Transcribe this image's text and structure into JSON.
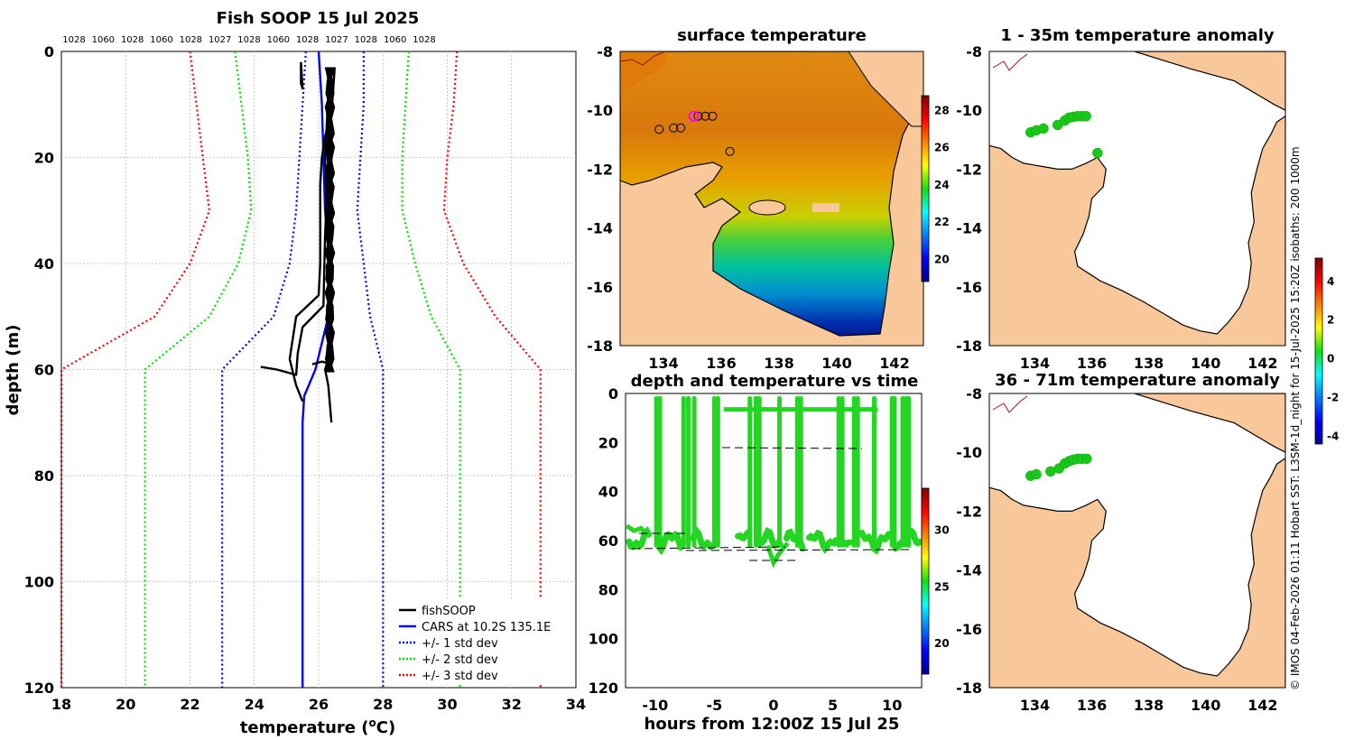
{
  "chart_data": [
    {
      "id": "profile",
      "type": "line",
      "title": "Fish SOOP 15 Jul 2025",
      "xlabel_main": "temperature (",
      "xlabel_sup": "o",
      "xlabel_end": "C)",
      "ylabel": "depth (m)",
      "xlim": [
        18,
        34
      ],
      "ylim": [
        0,
        120
      ],
      "xticks": [
        18,
        20,
        22,
        24,
        26,
        28,
        30,
        32,
        34
      ],
      "yticks": [
        0,
        20,
        40,
        60,
        80,
        100,
        120
      ],
      "top_labels": [
        "1028",
        "1060",
        "1028",
        "1060",
        "1028",
        "1027",
        "1028",
        "1060",
        "1028",
        "1027",
        "1028",
        "1060",
        "1028"
      ],
      "legend_position": "bottom-right",
      "legend": [
        {
          "label": "fishSOOP",
          "color": "#000000",
          "style": "solid"
        },
        {
          "label": "CARS at 10.2S 135.1E",
          "color": "#0000ff",
          "style": "solid"
        },
        {
          "label": "+/- 1 std dev",
          "color": "#0000ff",
          "style": "dotted"
        },
        {
          "label": "+/- 2 std dev",
          "color": "#00e000",
          "style": "dotted"
        },
        {
          "label": "+/- 3 std dev",
          "color": "#ff0000",
          "style": "dotted"
        }
      ],
      "series": [
        {
          "name": "CARS",
          "color": "#0000ff",
          "dash": false,
          "points": [
            [
              26.0,
              0
            ],
            [
              26.1,
              10
            ],
            [
              26.2,
              30
            ],
            [
              26.35,
              40
            ],
            [
              26.3,
              50
            ],
            [
              25.9,
              60
            ],
            [
              25.55,
              65
            ],
            [
              25.5,
              70
            ],
            [
              25.5,
              120
            ]
          ]
        },
        {
          "name": "-1 std",
          "color": "#0000ff",
          "dash": true,
          "points": [
            [
              25.6,
              0
            ],
            [
              25.5,
              10
            ],
            [
              25.4,
              20
            ],
            [
              25.3,
              30
            ],
            [
              25.1,
              40
            ],
            [
              24.6,
              50
            ],
            [
              23.0,
              60
            ],
            [
              23.0,
              120
            ]
          ]
        },
        {
          "name": "+1 std",
          "color": "#0000ff",
          "dash": true,
          "points": [
            [
              27.4,
              0
            ],
            [
              27.4,
              10
            ],
            [
              27.3,
              20
            ],
            [
              27.2,
              30
            ],
            [
              27.4,
              40
            ],
            [
              27.6,
              50
            ],
            [
              28.0,
              60
            ],
            [
              28.0,
              120
            ]
          ]
        },
        {
          "name": "-2 std",
          "color": "#00e000",
          "dash": true,
          "points": [
            [
              23.4,
              0
            ],
            [
              23.6,
              10
            ],
            [
              23.8,
              20
            ],
            [
              23.9,
              30
            ],
            [
              23.5,
              40
            ],
            [
              22.6,
              50
            ],
            [
              20.6,
              60
            ],
            [
              20.6,
              120
            ]
          ]
        },
        {
          "name": "+2 std",
          "color": "#00e000",
          "dash": true,
          "points": [
            [
              28.8,
              0
            ],
            [
              28.7,
              10
            ],
            [
              28.6,
              20
            ],
            [
              28.6,
              30
            ],
            [
              29.0,
              40
            ],
            [
              29.5,
              50
            ],
            [
              30.4,
              60
            ],
            [
              30.4,
              120
            ]
          ]
        },
        {
          "name": "-3 std",
          "color": "#ff0000",
          "dash": true,
          "points": [
            [
              22.0,
              0
            ],
            [
              22.2,
              10
            ],
            [
              22.4,
              20
            ],
            [
              22.6,
              30
            ],
            [
              22.0,
              40
            ],
            [
              20.9,
              50
            ],
            [
              18.0,
              60
            ],
            [
              18.0,
              120
            ]
          ]
        },
        {
          "name": "+3 std",
          "color": "#ff0000",
          "dash": true,
          "points": [
            [
              30.3,
              0
            ],
            [
              30.2,
              10
            ],
            [
              30.0,
              20
            ],
            [
              29.9,
              30
            ],
            [
              30.5,
              40
            ],
            [
              31.5,
              50
            ],
            [
              32.9,
              60
            ],
            [
              32.9,
              120
            ]
          ]
        },
        {
          "name": "fishSOOP a",
          "color": "#000000",
          "dash": false,
          "points": [
            [
              26.3,
              3
            ],
            [
              26.35,
              10
            ],
            [
              26.4,
              20
            ],
            [
              26.4,
              30
            ],
            [
              26.4,
              40
            ],
            [
              26.35,
              50
            ],
            [
              26.3,
              58
            ],
            [
              26.2,
              60
            ],
            [
              26.3,
              63
            ],
            [
              26.4,
              70
            ]
          ]
        },
        {
          "name": "fishSOOP b",
          "color": "#000000",
          "dash": false,
          "points": [
            [
              26.5,
              3
            ],
            [
              26.4,
              12
            ],
            [
              26.2,
              16
            ],
            [
              26.1,
              20
            ],
            [
              26.05,
              25
            ],
            [
              26.05,
              40
            ],
            [
              26.0,
              46
            ],
            [
              25.3,
              50
            ],
            [
              25.1,
              58
            ],
            [
              25.3,
              63
            ],
            [
              25.5,
              66
            ]
          ]
        },
        {
          "name": "fishSOOP c",
          "color": "#000000",
          "dash": false,
          "points": [
            [
              26.4,
              5
            ],
            [
              26.3,
              20
            ],
            [
              26.2,
              35
            ],
            [
              26.15,
              48
            ],
            [
              25.5,
              52
            ],
            [
              25.35,
              57
            ],
            [
              25.3,
              61
            ],
            [
              24.7,
              60
            ],
            [
              24.2,
              59.5
            ]
          ]
        },
        {
          "name": "fishSOOP d",
          "color": "#000000",
          "dash": false,
          "points": [
            [
              26.3,
              8
            ],
            [
              26.2,
              20
            ],
            [
              26.3,
              40
            ],
            [
              26.4,
              59
            ],
            [
              26.1,
              58.5
            ],
            [
              25.8,
              59
            ]
          ]
        },
        {
          "name": "fishSOOP e",
          "color": "#000000",
          "dash": false,
          "points": [
            [
              25.45,
              2
            ],
            [
              25.45,
              6
            ],
            [
              25.5,
              7
            ],
            [
              25.45,
              2
            ]
          ]
        }
      ]
    },
    {
      "id": "sst",
      "type": "heatmap",
      "title": "surface temperature",
      "xticks": [
        134,
        136,
        138,
        140,
        142
      ],
      "yticks": [
        -8,
        -10,
        -12,
        -14,
        -16,
        -18
      ],
      "colorbar_ticks": [
        20,
        22,
        24,
        26,
        28
      ]
    },
    {
      "id": "timeseries",
      "type": "scatter",
      "title": "depth and temperature vs time",
      "xlabel": "hours from 12:00Z 15 Jul 25",
      "xticks": [
        -10,
        -5,
        0,
        5,
        10
      ],
      "yticks": [
        0,
        20,
        40,
        60,
        80,
        100,
        120
      ],
      "colorbar_ticks": [
        20,
        25,
        30
      ],
      "deep_intervals": [
        [
          -12.2,
          -10.5
        ],
        [
          -9.8,
          -7.8
        ],
        [
          -6.8,
          -5.0
        ],
        [
          -3.0,
          -2.0
        ],
        [
          -1.4,
          0.6
        ],
        [
          1.1,
          2.5
        ],
        [
          3.0,
          5.3
        ],
        [
          6.0,
          6.6
        ],
        [
          7.3,
          9.8
        ],
        [
          10.2,
          11.0
        ],
        [
          11.6,
          12.4
        ]
      ],
      "profile_times": [
        -9.9,
        -9.6,
        -7.6,
        -7.2,
        -6.7,
        -5.0,
        -4.7,
        -2.0,
        -1.5,
        -1.2,
        0.5,
        2.0,
        2.3,
        5.5,
        5.8,
        6.8,
        7.1,
        8.5,
        10.0,
        10.2,
        10.9,
        11.2,
        11.4
      ],
      "shallow_period": [
        -4.2,
        8.8
      ]
    },
    {
      "id": "anom1",
      "type": "scatter",
      "title": "1 - 35m temperature anomaly",
      "xticks": [
        134,
        136,
        138,
        140,
        142
      ],
      "yticks": [
        -8,
        -10,
        -12,
        -14,
        -16,
        -18
      ],
      "points": [
        [
          133.85,
          -10.75
        ],
        [
          134.05,
          -10.68
        ],
        [
          134.3,
          -10.62
        ],
        [
          134.8,
          -10.5
        ],
        [
          135.05,
          -10.35
        ],
        [
          135.2,
          -10.25
        ],
        [
          135.35,
          -10.22
        ],
        [
          135.5,
          -10.2
        ],
        [
          135.65,
          -10.2
        ],
        [
          135.8,
          -10.2
        ],
        [
          136.2,
          -11.45
        ]
      ]
    },
    {
      "id": "anom2",
      "type": "scatter",
      "title": "36 - 71m temperature anomaly",
      "xticks": [
        134,
        136,
        138,
        140,
        142
      ],
      "yticks": [
        -8,
        -10,
        -12,
        -14,
        -16,
        -18
      ],
      "points": [
        [
          133.85,
          -10.8
        ],
        [
          134.05,
          -10.75
        ],
        [
          134.55,
          -10.65
        ],
        [
          134.85,
          -10.55
        ],
        [
          135.05,
          -10.38
        ],
        [
          135.2,
          -10.3
        ],
        [
          135.35,
          -10.25
        ],
        [
          135.5,
          -10.22
        ],
        [
          135.65,
          -10.22
        ],
        [
          135.82,
          -10.22
        ]
      ]
    }
  ],
  "anom_colorbar_ticks": [
    4,
    2,
    0,
    -2,
    -4
  ],
  "side_text": "© IMOS 04-Feb-2026 01:11 Hobart SST: L3SM-1d_night for 15-Jul-2025 15:20Z isobaths: 200  1000m"
}
